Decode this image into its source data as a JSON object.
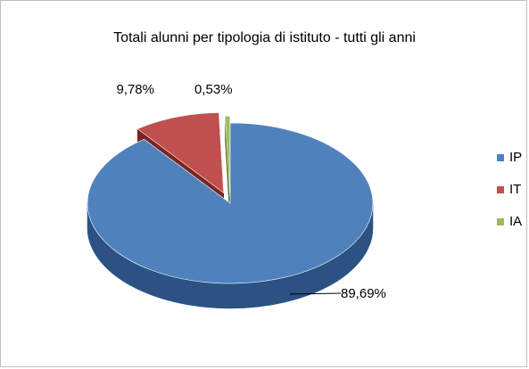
{
  "chart_data": {
    "type": "pie",
    "title": "Totali alunni per tipologia di istituto - tutti gli anni",
    "series": [
      {
        "name": "IP",
        "value": 89.69,
        "label": "89,69%",
        "color": "#4f81bd",
        "dark": "#2b5282"
      },
      {
        "name": "IT",
        "value": 9.78,
        "label": "9,78%",
        "color": "#c0504d",
        "dark": "#7a2422"
      },
      {
        "name": "IA",
        "value": 0.53,
        "label": "0,53%",
        "color": "#9bbb59",
        "dark": "#5e7a2c"
      }
    ],
    "legend_position": "right",
    "style": "3d-exploded"
  }
}
